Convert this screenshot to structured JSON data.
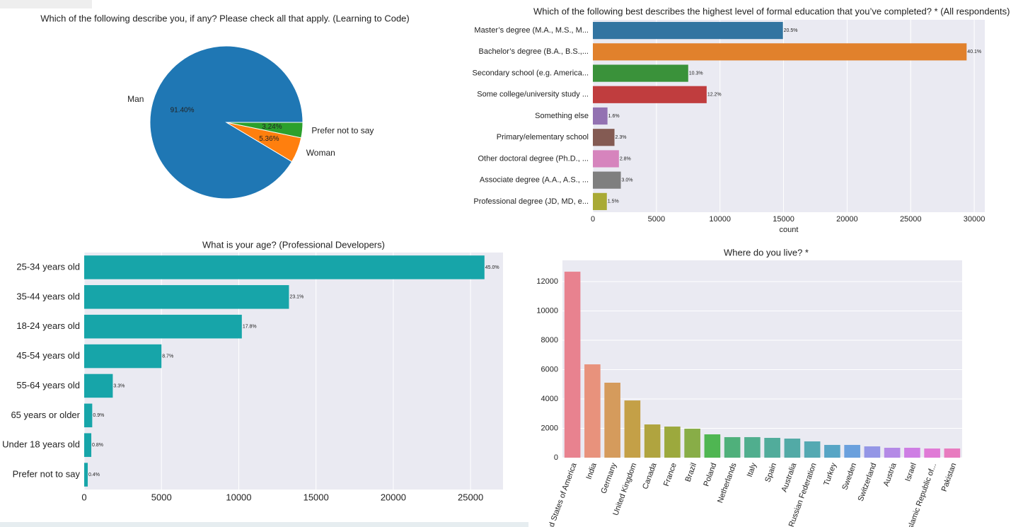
{
  "chart_data": [
    {
      "type": "pie",
      "title": "Which of the following describe you, if any? Please check all that apply. (Learning to Code)",
      "categories": [
        "Man",
        "Woman",
        "Prefer not to say"
      ],
      "values": [
        91.4,
        5.36,
        3.24
      ],
      "value_labels": [
        "91.40%",
        "5.36%",
        "3.24%"
      ],
      "colors": [
        "#1f77b4",
        "#ff7f0e",
        "#2ca02c"
      ]
    },
    {
      "type": "barh",
      "title": "Which of the following best describes the highest level of formal education that you’ve completed? * (All respondents)",
      "categories": [
        "Master’s degree (M.A., M.S., M...",
        "Bachelor’s degree (B.A., B.S.,...",
        "Secondary school (e.g. America...",
        "Some college/university study ...",
        "Something else",
        "Primary/elementary school",
        "Other doctoral degree (Ph.D., ...",
        "Associate degree (A.A., A.S., ...",
        "Professional degree (JD, MD, e..."
      ],
      "values": [
        14950,
        29400,
        7500,
        8950,
        1150,
        1700,
        2050,
        2200,
        1100
      ],
      "percent_labels": [
        "20.5%",
        "40.1%",
        "10.3%",
        "12.2%",
        "1.6%",
        "2.3%",
        "2.8%",
        "3.0%",
        "1.5%"
      ],
      "colors": [
        "#3274a1",
        "#e1812c",
        "#3a923a",
        "#c03d3e",
        "#9372b2",
        "#845b53",
        "#d684bd",
        "#7f7f7f",
        "#a9aa35"
      ],
      "xlabel": "count",
      "xlim": [
        0,
        30830
      ],
      "xticks": [
        0,
        5000,
        10000,
        15000,
        20000,
        25000,
        30000
      ],
      "grid": true
    },
    {
      "type": "barh",
      "title": "What is your age? (Professional Developers)",
      "categories": [
        "25-34 years old",
        "35-44 years old",
        "18-24 years old",
        "45-54 years old",
        "55-64 years old",
        "65 years or older",
        "Under 18 years old",
        "Prefer not to say"
      ],
      "values": [
        25900,
        13250,
        10200,
        5000,
        1850,
        520,
        460,
        230
      ],
      "percent_labels": [
        "45.0%",
        "23.1%",
        "17.8%",
        "8.7%",
        "3.3%",
        "0.9%",
        "0.8%",
        "0.4%"
      ],
      "color": "#17a5a9",
      "xlim": [
        0,
        27100
      ],
      "xticks": [
        0,
        5000,
        10000,
        15000,
        20000,
        25000
      ],
      "grid": true
    },
    {
      "type": "bar",
      "title": "Where do you live? *",
      "categories": [
        "United States of America",
        "India",
        "Germany",
        "United Kingdom",
        "Canada",
        "France",
        "Brazil",
        "Poland",
        "Netherlands",
        "Italy",
        "Spain",
        "Australia",
        "Russian Federation",
        "Turkey",
        "Sweden",
        "Switzerland",
        "Austria",
        "Israel",
        "Iran, Islamic Republic of...",
        "Pakistan"
      ],
      "values": [
        12675,
        6360,
        5110,
        3900,
        2265,
        2120,
        1975,
        1590,
        1400,
        1400,
        1350,
        1300,
        1110,
        870,
        870,
        770,
        675,
        675,
        625,
        625
      ],
      "colors": [
        "#e8828f",
        "#e8927c",
        "#d59b5c",
        "#c4a047",
        "#b0a43f",
        "#9ca93d",
        "#88ad47",
        "#4fb652",
        "#4fb07b",
        "#50ae8e",
        "#51ac9b",
        "#52aaa6",
        "#54a9b2",
        "#57a5c5",
        "#6aa0dd",
        "#9496e6",
        "#b48ae6",
        "#ce7ee4",
        "#e07ad6",
        "#e87bbf"
      ],
      "ylim": [
        0,
        13450
      ],
      "yticks": [
        0,
        2000,
        4000,
        6000,
        8000,
        10000,
        12000
      ],
      "grid": true
    }
  ]
}
